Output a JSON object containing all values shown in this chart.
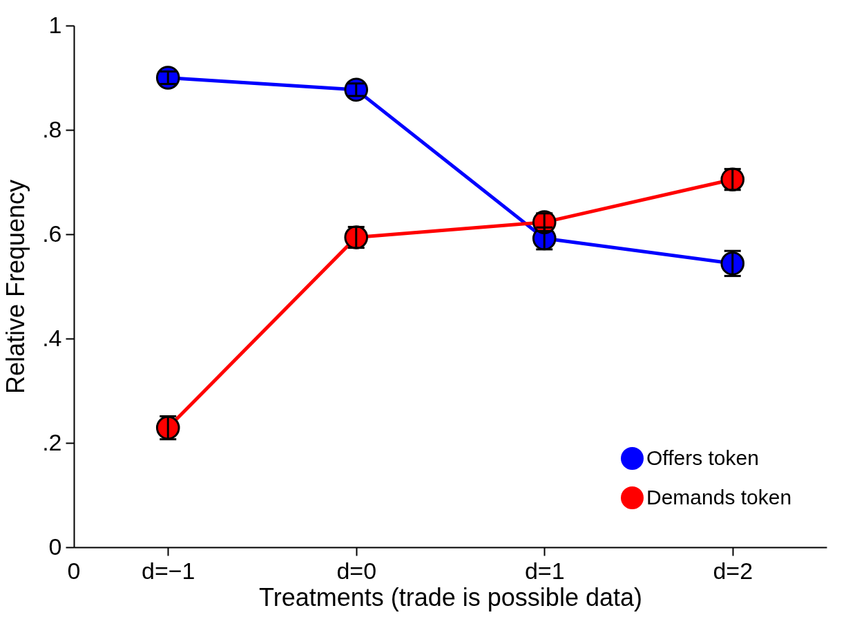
{
  "chart_data": {
    "type": "line",
    "xlabel": "Treatments (trade is possible data)",
    "ylabel": "Relative Frequency",
    "categories": [
      "d=−1",
      "d=0",
      "d=1",
      "d=2"
    ],
    "ylim": [
      0,
      1
    ],
    "yticks": [
      0,
      {
        "value": 0.2,
        "label": ".2"
      },
      {
        "value": 0.4,
        "label": ".4"
      },
      {
        "value": 0.6,
        "label": ".6"
      },
      {
        "value": 0.8,
        "label": ".8"
      },
      1
    ],
    "series": [
      {
        "name": "Offers token",
        "color": "#0000ff",
        "values": [
          0.9,
          0.877,
          0.592,
          0.544
        ],
        "errors": [
          0.012,
          0.012,
          0.021,
          0.024
        ]
      },
      {
        "name": "Demands token",
        "color": "#ff0000",
        "values": [
          0.229,
          0.594,
          0.623,
          0.705
        ],
        "errors": [
          0.022,
          0.02,
          0.017,
          0.02
        ]
      }
    ],
    "annotations": [
      "0"
    ],
    "marker": "circle",
    "line_style": "solid",
    "grid": false,
    "legend": "bottom right"
  }
}
